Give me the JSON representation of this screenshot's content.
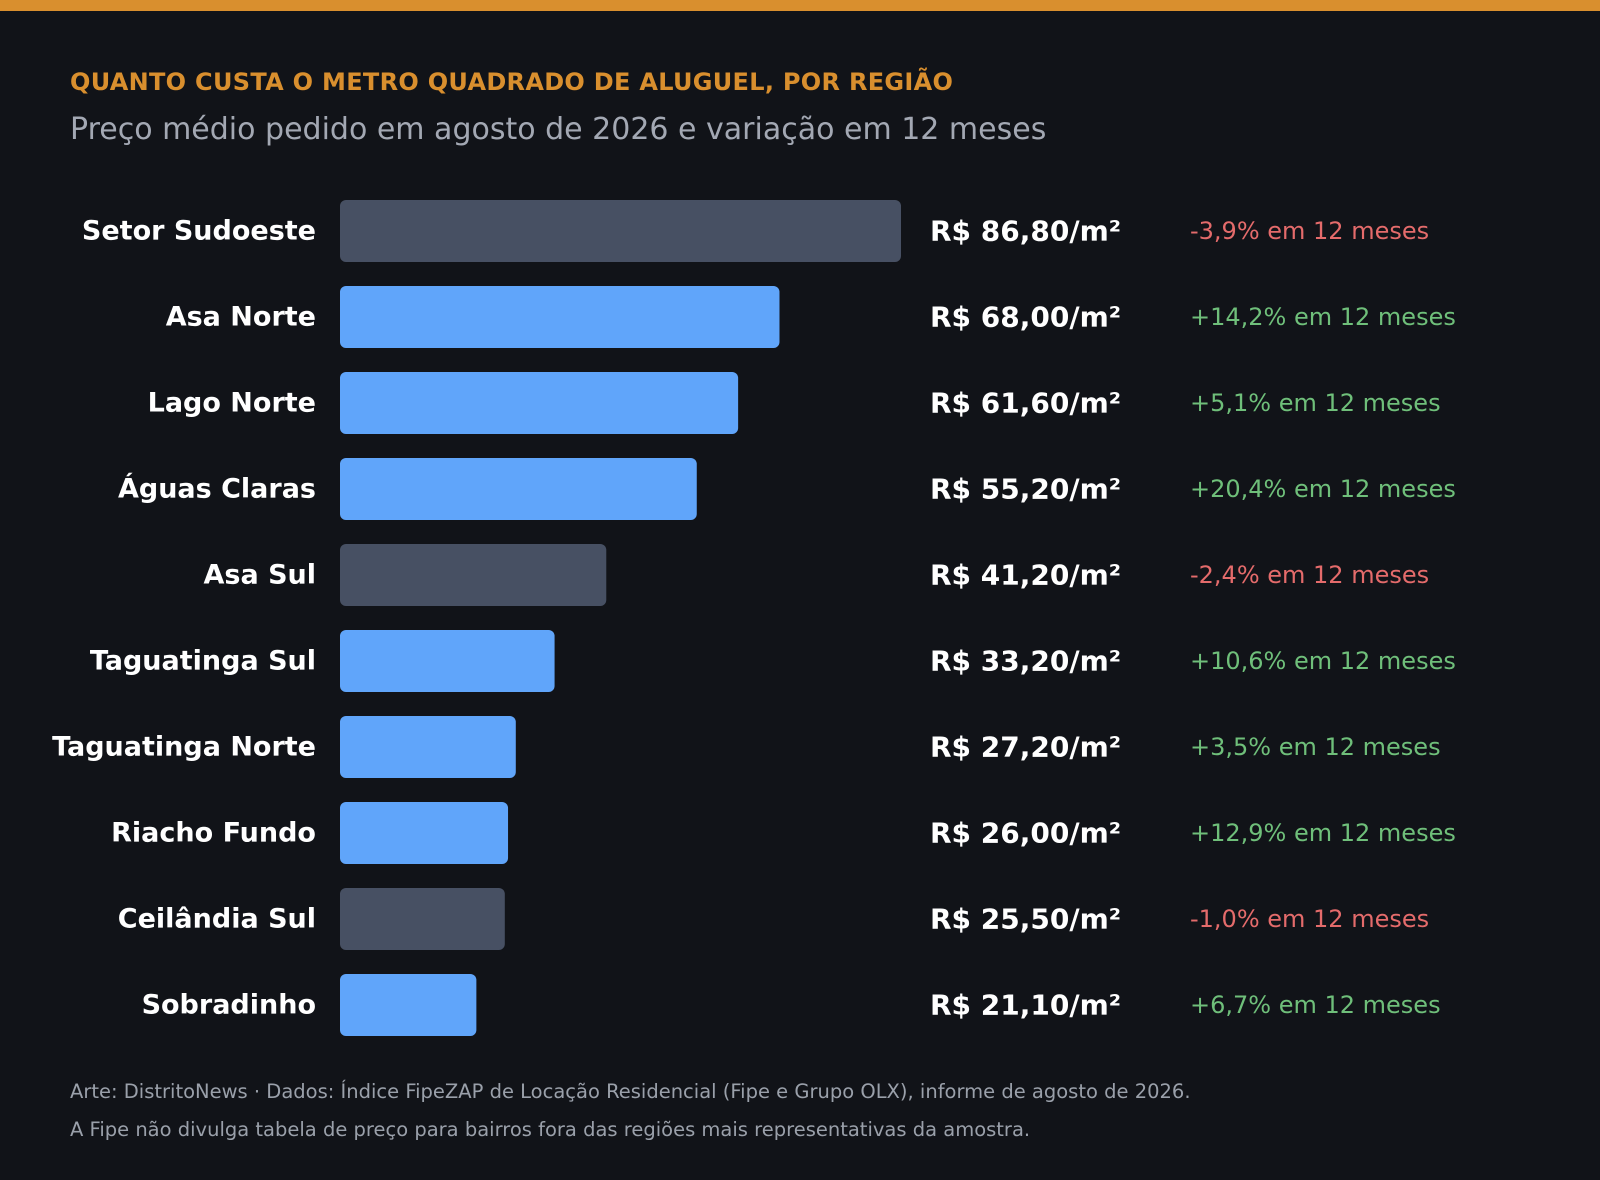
{
  "header": {
    "kicker": "QUANTO CUSTA O METRO QUADRADO DE ALUGUEL, POR REGIÃO",
    "subtitle": "Preço médio pedido em agosto de 2026 e variação em 12 meses"
  },
  "footer": {
    "line1": "Arte: DistritoNews · Dados: Índice FipeZAP de Locação Residencial (Fipe e Grupo OLX), informe de agosto de 2026.",
    "line2": "A Fipe não divulga tabela de preço para bairros fora das regiões mais representativas da amostra."
  },
  "colors": {
    "accent": "#d98f2e",
    "rise_bar": "#60a5fa",
    "fall_bar": "#475063",
    "rise_text": "#6fbf7a",
    "fall_text": "#e46b6b",
    "background": "#111318"
  },
  "chart_data": {
    "type": "bar",
    "orientation": "horizontal",
    "title": "QUANTO CUSTA O METRO QUADRADO DE ALUGUEL, POR REGIÃO",
    "subtitle": "Preço médio pedido em agosto de 2026 e variação em 12 meses",
    "xlim": [
      0,
      86.8
    ],
    "categories": [
      "Setor Sudoeste",
      "Asa Norte",
      "Lago Norte",
      "Águas Claras",
      "Asa Sul",
      "Taguatinga Sul",
      "Taguatinga Norte",
      "Riacho Fundo",
      "Ceilândia Sul",
      "Sobradinho"
    ],
    "values": [
      86.8,
      68.0,
      61.6,
      55.2,
      41.2,
      33.2,
      27.2,
      26.0,
      25.5,
      21.1
    ],
    "value_labels": [
      "R$ 86,80/m²",
      "R$ 68,00/m²",
      "R$ 61,60/m²",
      "R$ 55,20/m²",
      "R$ 41,20/m²",
      "R$ 33,20/m²",
      "R$ 27,20/m²",
      "R$ 26,00/m²",
      "R$ 25,50/m²",
      "R$ 21,10/m²"
    ],
    "change_pct": [
      -3.9,
      14.2,
      5.1,
      20.4,
      -2.4,
      10.6,
      3.5,
      12.9,
      -1.0,
      6.7
    ],
    "change_labels": [
      "-3,9% em 12 meses",
      "+14,2% em 12 meses",
      "+5,1% em 12 meses",
      "+20,4% em 12 meses",
      "-2,4% em 12 meses",
      "+10,6% em 12 meses",
      "+3,5% em 12 meses",
      "+12,9% em 12 meses",
      "-1,0% em 12 meses",
      "+6,7% em 12 meses"
    ]
  }
}
